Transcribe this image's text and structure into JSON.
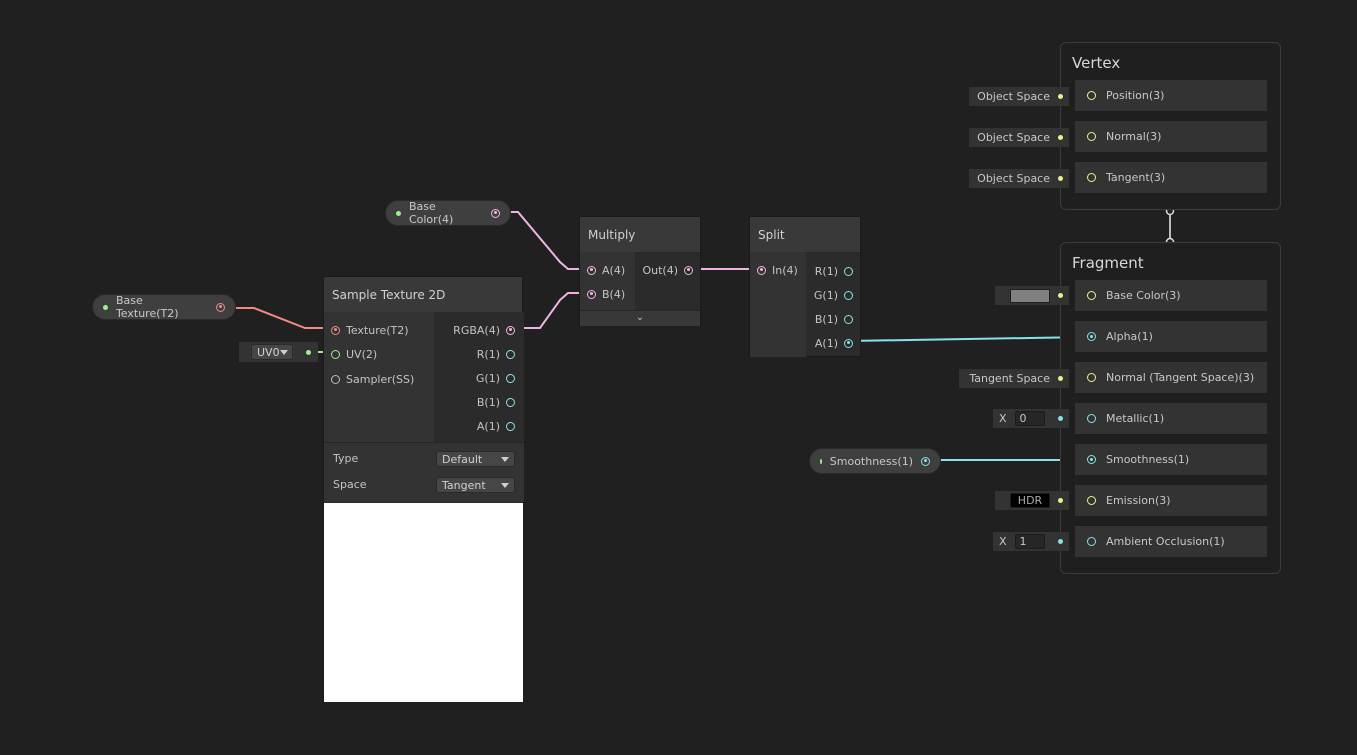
{
  "colors": {
    "background": "#202020",
    "texture_wire": "#f08a84",
    "vector4_wire": "#f0b4e4",
    "vector3_wire": "#f0f08a",
    "vector1_wire": "#84e4e8",
    "vector2_wire": "#9af08a"
  },
  "properties": {
    "base_texture": "Base Texture(T2)",
    "base_color": "Base Color(4)",
    "smoothness": "Smoothness(1)"
  },
  "sample_texture": {
    "title": "Sample Texture 2D",
    "inputs": [
      "Texture(T2)",
      "UV(2)",
      "Sampler(SS)"
    ],
    "outputs": [
      "RGBA(4)",
      "R(1)",
      "G(1)",
      "B(1)",
      "A(1)"
    ],
    "uv_value": "UV0",
    "type_label": "Type",
    "type_value": "Default",
    "space_label": "Space",
    "space_value": "Tangent"
  },
  "multiply": {
    "title": "Multiply",
    "inputs": [
      "A(4)",
      "B(4)"
    ],
    "output": "Out(4)"
  },
  "split": {
    "title": "Split",
    "input": "In(4)",
    "outputs": [
      "R(1)",
      "G(1)",
      "B(1)",
      "A(1)"
    ]
  },
  "vertex": {
    "title": "Vertex",
    "slots": [
      {
        "label": "Position(3)",
        "default": "Object Space"
      },
      {
        "label": "Normal(3)",
        "default": "Object Space"
      },
      {
        "label": "Tangent(3)",
        "default": "Object Space"
      }
    ]
  },
  "fragment": {
    "title": "Fragment",
    "base_color": "Base Color(3)",
    "base_color_swatch": "#808080",
    "alpha": "Alpha(1)",
    "normal": "Normal (Tangent Space)(3)",
    "normal_default": "Tangent Space",
    "metallic": "Metallic(1)",
    "metallic_axis": "X",
    "metallic_value": "0",
    "smoothness": "Smoothness(1)",
    "emission": "Emission(3)",
    "emission_default": "HDR",
    "ao": "Ambient Occlusion(1)",
    "ao_axis": "X",
    "ao_value": "1"
  }
}
